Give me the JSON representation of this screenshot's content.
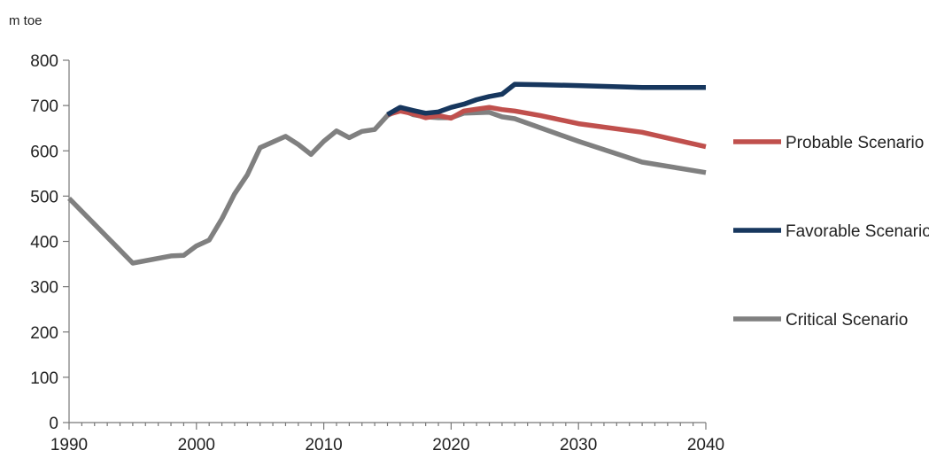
{
  "chart_data": {
    "type": "line",
    "unit_label": "m toe",
    "xlim": [
      1990,
      2040
    ],
    "ylim": [
      0,
      800
    ],
    "x_ticks": [
      1990,
      2000,
      2010,
      2020,
      2030,
      2040
    ],
    "y_ticks": [
      0,
      100,
      200,
      300,
      400,
      500,
      600,
      700,
      800
    ],
    "grid": false,
    "legend_position": "right",
    "series": [
      {
        "name": "Probable Scenario",
        "color": "#c0504d",
        "points": [
          [
            2015,
            680
          ],
          [
            2016,
            688
          ],
          [
            2017,
            682
          ],
          [
            2018,
            673
          ],
          [
            2019,
            678
          ],
          [
            2020,
            672
          ],
          [
            2021,
            688
          ],
          [
            2022,
            692
          ],
          [
            2023,
            696
          ],
          [
            2024,
            691
          ],
          [
            2025,
            688
          ],
          [
            2027,
            678
          ],
          [
            2030,
            660
          ],
          [
            2035,
            641
          ],
          [
            2040,
            609
          ]
        ]
      },
      {
        "name": "Favorable Scenario",
        "color": "#17375e",
        "points": [
          [
            2015,
            680
          ],
          [
            2016,
            696
          ],
          [
            2017,
            689
          ],
          [
            2018,
            683
          ],
          [
            2019,
            686
          ],
          [
            2020,
            696
          ],
          [
            2021,
            703
          ],
          [
            2022,
            713
          ],
          [
            2023,
            720
          ],
          [
            2024,
            725
          ],
          [
            2025,
            747
          ],
          [
            2027,
            746
          ],
          [
            2030,
            744
          ],
          [
            2035,
            740
          ],
          [
            2040,
            740
          ]
        ]
      },
      {
        "name": "Critical Scenario",
        "color": "#808080",
        "points": [
          [
            1990,
            495
          ],
          [
            1995,
            352
          ],
          [
            1998,
            368
          ],
          [
            1999,
            369
          ],
          [
            2000,
            390
          ],
          [
            2001,
            403
          ],
          [
            2002,
            450
          ],
          [
            2003,
            505
          ],
          [
            2004,
            547
          ],
          [
            2005,
            607
          ],
          [
            2007,
            632
          ],
          [
            2008,
            614
          ],
          [
            2009,
            592
          ],
          [
            2010,
            621
          ],
          [
            2011,
            644
          ],
          [
            2012,
            629
          ],
          [
            2013,
            643
          ],
          [
            2014,
            647
          ],
          [
            2015,
            678
          ],
          [
            2016,
            692
          ],
          [
            2017,
            680
          ],
          [
            2018,
            675
          ],
          [
            2019,
            673
          ],
          [
            2020,
            673
          ],
          [
            2021,
            683
          ],
          [
            2022,
            684
          ],
          [
            2023,
            685
          ],
          [
            2024,
            675
          ],
          [
            2025,
            671
          ],
          [
            2030,
            621
          ],
          [
            2035,
            575
          ],
          [
            2040,
            552
          ]
        ]
      }
    ]
  }
}
